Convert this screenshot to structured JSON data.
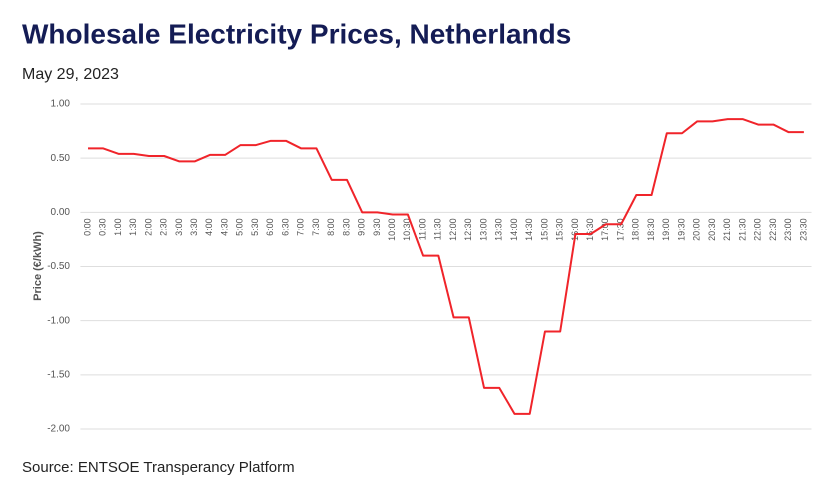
{
  "chart_data": {
    "type": "line",
    "title": "Wholesale Electricity Prices, Netherlands",
    "subtitle": "May 29, 2023",
    "source": "Source: ENTSOE Transperancy Platform",
    "y_label": "Price (€/kWh)",
    "categories": [
      "0:00",
      "0:30",
      "1:00",
      "1:30",
      "2:00",
      "2:30",
      "3:00",
      "3:30",
      "4:00",
      "4:30",
      "5:00",
      "5:30",
      "6:00",
      "6:30",
      "7:00",
      "7:30",
      "8:00",
      "8:30",
      "9:00",
      "9:30",
      "10:00",
      "10:30",
      "11:00",
      "11:30",
      "12:00",
      "12:30",
      "13:00",
      "13:30",
      "14:00",
      "14:30",
      "15:00",
      "15:30",
      "16:00",
      "16:30",
      "17:00",
      "17:30",
      "18:00",
      "18:30",
      "19:00",
      "19:30",
      "20:00",
      "20:30",
      "21:00",
      "21:30",
      "22:00",
      "22:30",
      "23:00",
      "23:30"
    ],
    "series": [
      {
        "name": "Price",
        "color": "#f0242a",
        "values": [
          0.59,
          0.59,
          0.54,
          0.54,
          0.52,
          0.52,
          0.47,
          0.47,
          0.53,
          0.53,
          0.62,
          0.62,
          0.66,
          0.66,
          0.59,
          0.59,
          0.3,
          0.3,
          0.0,
          0.0,
          -0.02,
          -0.02,
          -0.4,
          -0.4,
          -0.97,
          -0.97,
          -1.62,
          -1.62,
          -1.86,
          -1.86,
          -1.1,
          -1.1,
          -0.2,
          -0.2,
          -0.11,
          -0.11,
          0.16,
          0.16,
          0.73,
          0.73,
          0.84,
          0.84,
          0.86,
          0.86,
          0.81,
          0.81,
          0.74,
          0.74
        ]
      }
    ],
    "ylim": [
      -2,
      1
    ],
    "yticks": [
      {
        "value": -2,
        "label": "-2.00"
      },
      {
        "value": -1.5,
        "label": "-1.50"
      },
      {
        "value": -1,
        "label": "-1.00"
      },
      {
        "value": -0.5,
        "label": "-0.50"
      },
      {
        "value": 0,
        "label": "0.00"
      },
      {
        "value": 0.5,
        "label": "0.50"
      },
      {
        "value": 1,
        "label": "1.00"
      }
    ],
    "grid": true
  }
}
